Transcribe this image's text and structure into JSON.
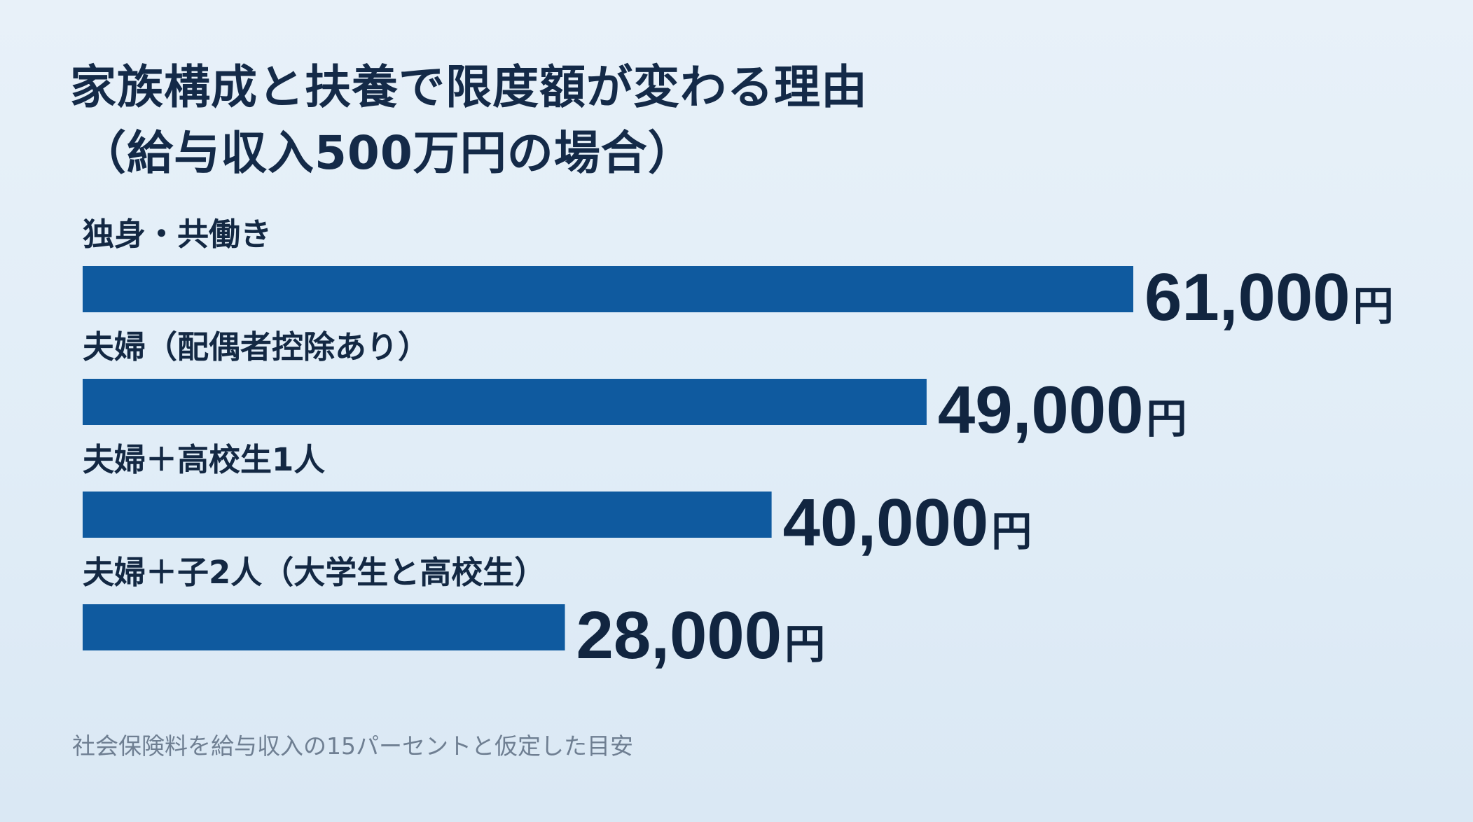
{
  "chart_data": {
    "type": "bar",
    "orientation": "horizontal",
    "title": "家族構成と扶養で限度額が変わる理由",
    "subtitle": "（給与収入500万円の場合）",
    "categories": [
      "独身・共働き",
      "夫婦（配偶者控除あり）",
      "夫婦＋高校生1人",
      "夫婦＋子2人（大学生と高校生）"
    ],
    "values": [
      61000,
      49000,
      40000,
      28000
    ],
    "value_labels": [
      "61,000",
      "49,000",
      "40,000",
      "28,000"
    ],
    "unit": "円",
    "xlim": [
      0,
      61000
    ],
    "grid": false,
    "bar_color": "#0f5a9f",
    "footnote": "社会保険料を給与収入の15パーセントと仮定した目安"
  }
}
